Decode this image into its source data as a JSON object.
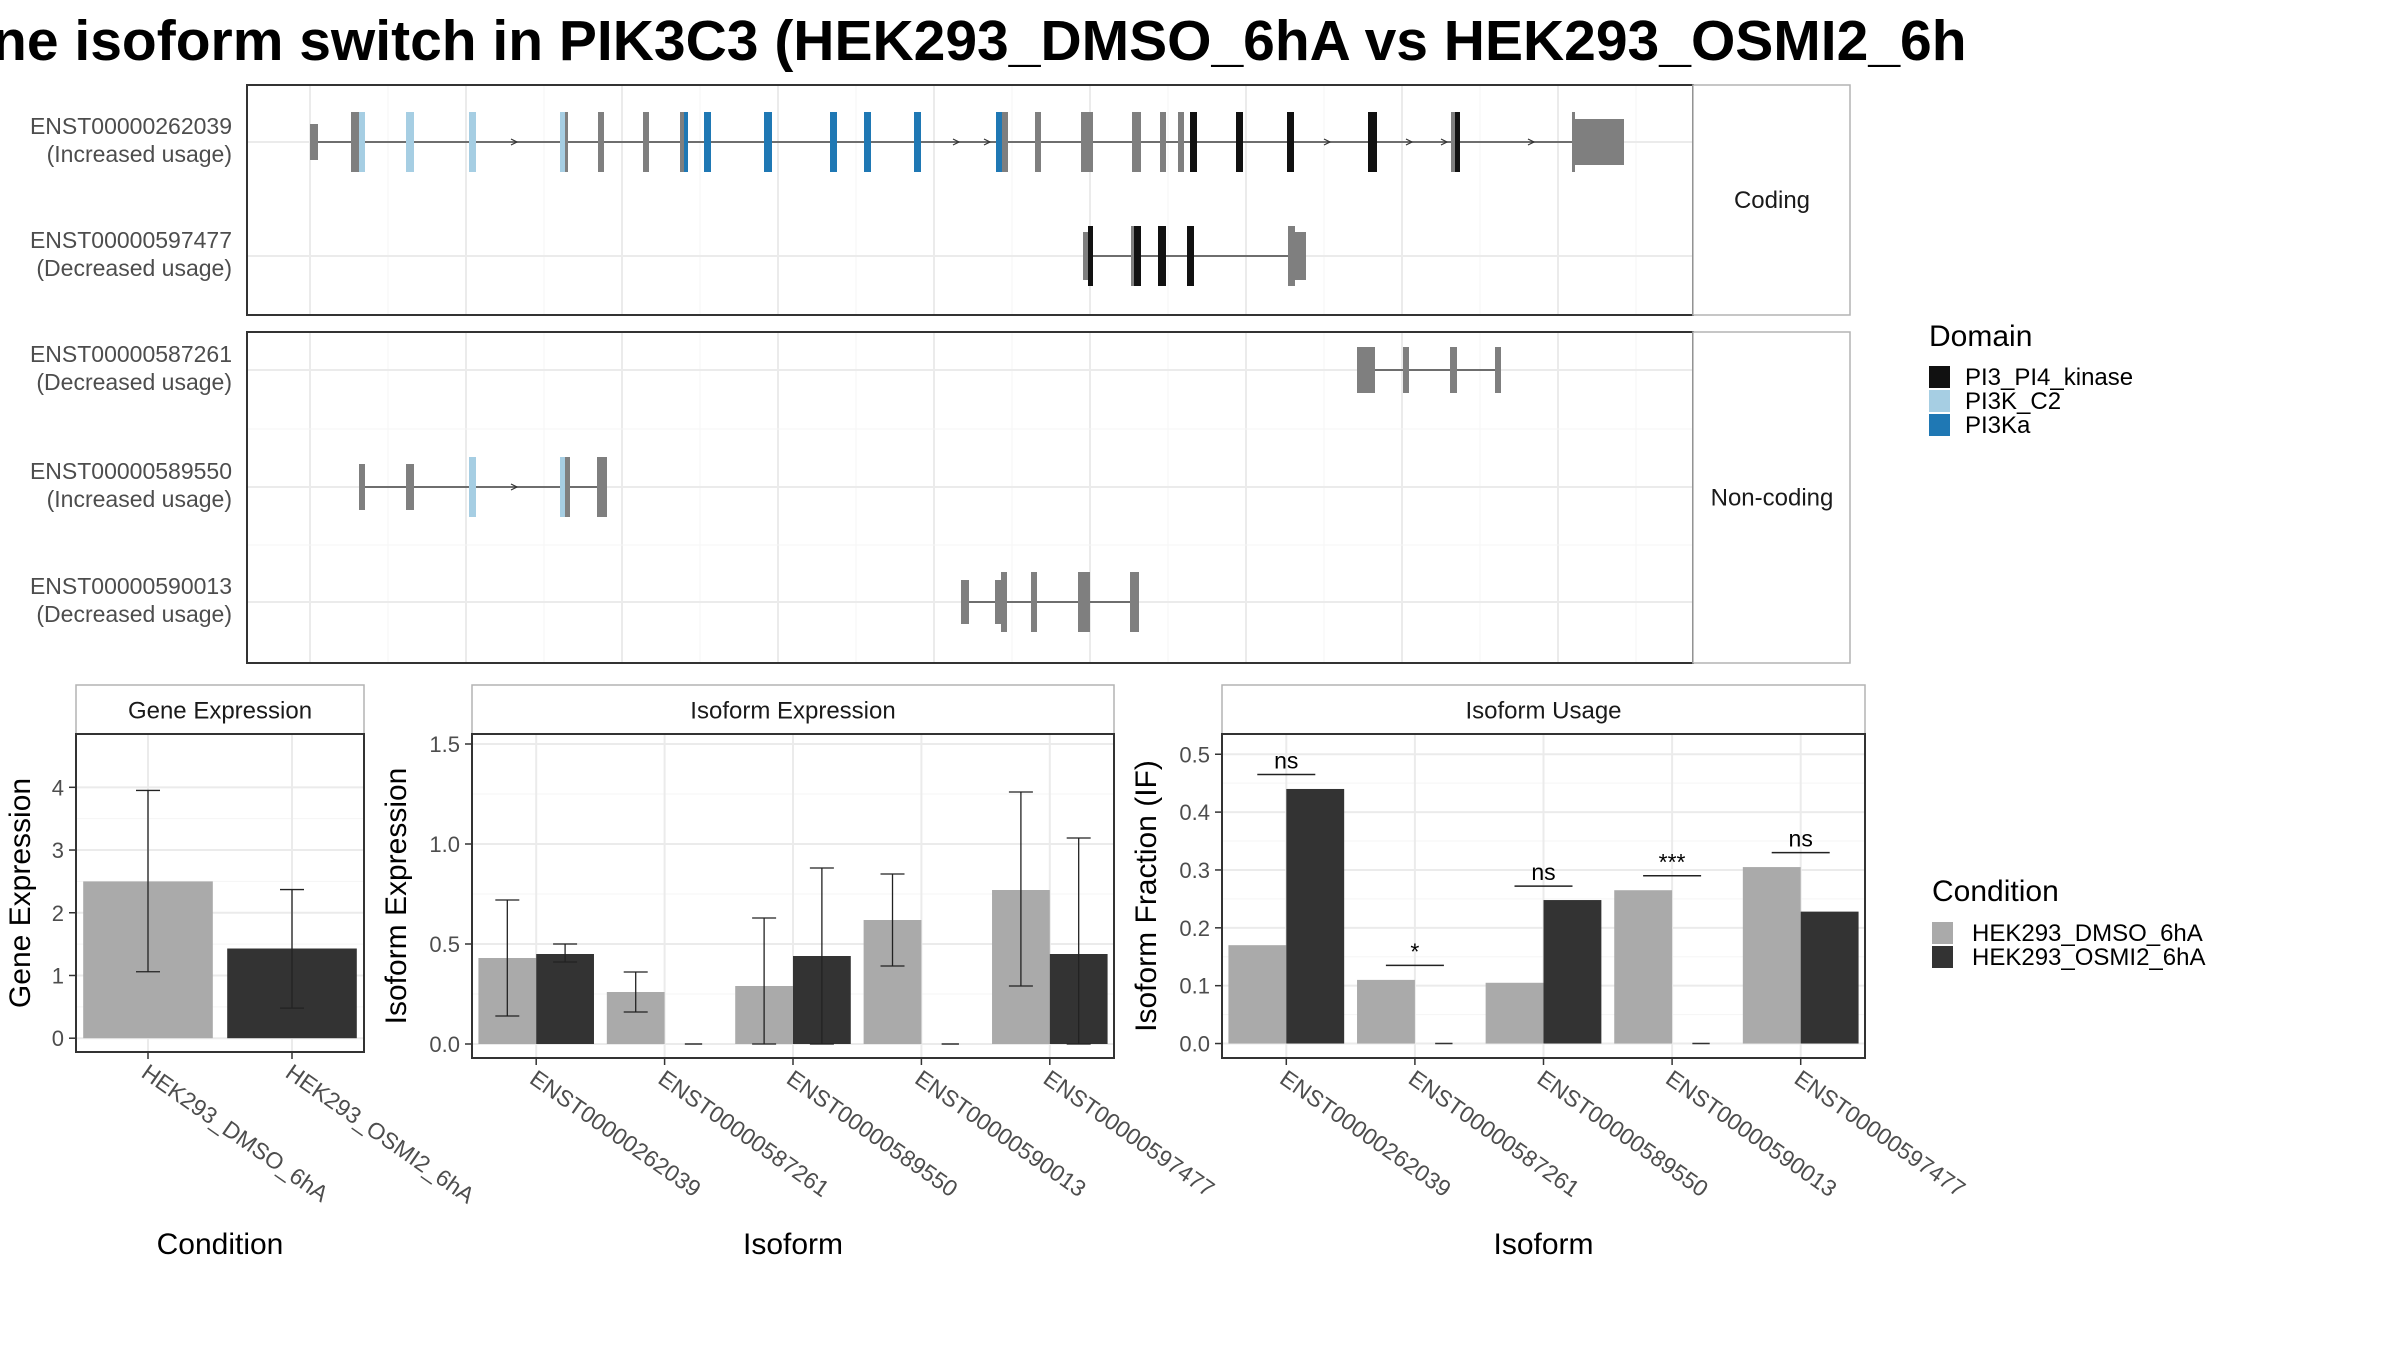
{
  "title": "ne isoform switch in PIK3C3 (HEK293_DMSO_6hA vs HEK293_OSMI2_6h",
  "colors": {
    "condition_dmso": "#aaaaaa",
    "condition_osmi": "#333333",
    "exon_default": "#7f7f7f",
    "domain_pi3_pi4_kinase": "#111111",
    "domain_pi3k_c2": "#a6cee3",
    "domain_pi3ka": "#1f78b4"
  },
  "chart_data": [
    {
      "type": "transcript-structure",
      "facets": [
        {
          "label": "Coding",
          "transcripts": [
            {
              "id": "ENST00000262039",
              "note": "(Increased usage)"
            },
            {
              "id": "ENST00000597477",
              "note": "(Decreased usage)"
            }
          ]
        },
        {
          "label": "Non-coding",
          "transcripts": [
            {
              "id": "ENST00000587261",
              "note": "(Decreased usage)"
            },
            {
              "id": "ENST00000589550",
              "note": "(Increased usage)"
            },
            {
              "id": "ENST00000590013",
              "note": "(Decreased usage)"
            }
          ]
        }
      ],
      "legend": {
        "title": "Domain",
        "placement": "right",
        "entries": [
          {
            "name": "PI3_PI4_kinase",
            "color": "#111111"
          },
          {
            "name": "PI3K_C2",
            "color": "#a6cee3"
          },
          {
            "name": "PI3Ka",
            "color": "#1f78b4"
          }
        ]
      }
    },
    {
      "type": "bar",
      "panel_title": "Gene Expression",
      "xlabel": "Condition",
      "ylabel": "Gene Expression",
      "categories": [
        "HEK293_DMSO_6hA",
        "HEK293_OSMI2_6hA"
      ],
      "values": [
        2.5,
        1.43
      ],
      "error_low": [
        1.06,
        0.48
      ],
      "error_high": [
        3.95,
        2.37
      ],
      "ylim": [
        -0.22,
        4.85
      ],
      "yticks": [
        0,
        1,
        2,
        3,
        4
      ],
      "grid": true
    },
    {
      "type": "bar",
      "panel_title": "Isoform Expression",
      "xlabel": "Isoform",
      "ylabel": "Isoform Expression",
      "categories": [
        "ENST00000262039",
        "ENST00000587261",
        "ENST00000589550",
        "ENST00000590013",
        "ENST00000597477"
      ],
      "series": [
        {
          "name": "HEK293_DMSO_6hA",
          "values": [
            0.43,
            0.26,
            0.29,
            0.62,
            0.77
          ],
          "error_low": [
            0.14,
            0.16,
            0.0,
            0.39,
            0.29
          ],
          "error_high": [
            0.72,
            0.36,
            0.63,
            0.85,
            1.26
          ]
        },
        {
          "name": "HEK293_OSMI2_6hA",
          "values": [
            0.45,
            0.0,
            0.44,
            0.0,
            0.45
          ],
          "error_low": [
            0.41,
            0.0,
            0.0,
            0.0,
            0.0
          ],
          "error_high": [
            0.5,
            0.0,
            0.88,
            0.0,
            1.03
          ]
        }
      ],
      "ylim": [
        -0.07,
        1.55
      ],
      "yticks": [
        "0.0",
        "0.5",
        "1.0",
        "1.5"
      ],
      "grid": true
    },
    {
      "type": "bar",
      "panel_title": "Isoform Usage",
      "xlabel": "Isoform",
      "ylabel": "Isoform Fraction (IF)",
      "categories": [
        "ENST00000262039",
        "ENST00000587261",
        "ENST00000589550",
        "ENST00000590013",
        "ENST00000597477"
      ],
      "series": [
        {
          "name": "HEK293_DMSO_6hA",
          "values": [
            0.17,
            0.11,
            0.105,
            0.265,
            0.305
          ]
        },
        {
          "name": "HEK293_OSMI2_6hA",
          "values": [
            0.44,
            0.0,
            0.248,
            0.0,
            0.228
          ]
        }
      ],
      "significance": [
        {
          "label": "ns",
          "y": 0.465
        },
        {
          "label": "*",
          "y": 0.135
        },
        {
          "label": "ns",
          "y": 0.272
        },
        {
          "label": "***",
          "y": 0.29
        },
        {
          "label": "ns",
          "y": 0.33
        }
      ],
      "ylim": [
        -0.025,
        0.535
      ],
      "yticks": [
        "0.0",
        "0.1",
        "0.2",
        "0.3",
        "0.4",
        "0.5"
      ],
      "grid": true
    }
  ],
  "condition_legend": {
    "title": "Condition",
    "placement": "right",
    "entries": [
      {
        "name": "HEK293_DMSO_6hA",
        "color": "#aaaaaa"
      },
      {
        "name": "HEK293_OSMI2_6hA",
        "color": "#333333"
      }
    ]
  }
}
